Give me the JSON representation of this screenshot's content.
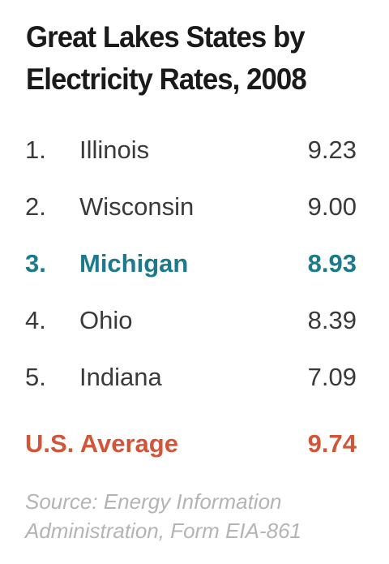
{
  "chart_data": {
    "type": "table",
    "title_lines": [
      "Great Lakes States by",
      "Electricity Rates, 2008"
    ],
    "rows": [
      {
        "rank": "1.",
        "state": "Illinois",
        "value": "9.23",
        "highlight": false
      },
      {
        "rank": "2.",
        "state": "Wisconsin",
        "value": "9.00",
        "highlight": false
      },
      {
        "rank": "3.",
        "state": "Michigan",
        "value": "8.93",
        "highlight": true
      },
      {
        "rank": "4.",
        "state": "Ohio",
        "value": "8.39",
        "highlight": false
      },
      {
        "rank": "5.",
        "state": "Indiana",
        "value": "7.09",
        "highlight": false
      }
    ],
    "average": {
      "label": "U.S. Average",
      "value": "9.74"
    },
    "source_lines": [
      "Source: Energy Information",
      "Administration, Form EIA-861"
    ]
  },
  "colors": {
    "title": "#1a1a1a",
    "text": "#3a3a3a",
    "highlight": "#1b7a8c",
    "average": "#d2553a",
    "source": "#b4b4b4"
  }
}
